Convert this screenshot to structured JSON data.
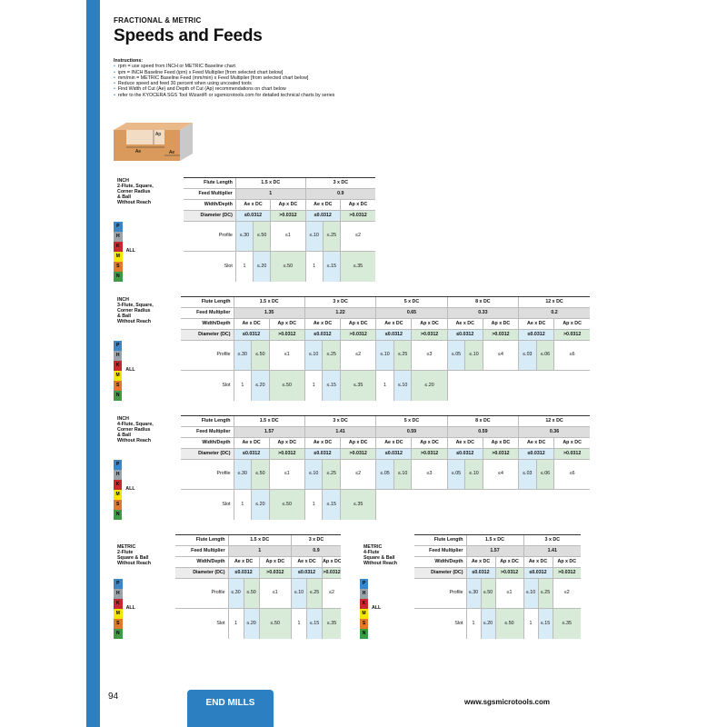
{
  "header": {
    "category": "FRACTIONAL & METRIC",
    "title": "Speeds and Feeds"
  },
  "instructions": {
    "heading": "Instructions:",
    "items": [
      "rpm = use speed from INCH or METRIC Baseline chart",
      "ipm = INCH Baseline Feed (ipm) x Feed Multiplier [from selected chart below]",
      "mm/min = METRIC Baseline Feed (mm/min) x Feed Multiplier [from selected chart below]",
      "Reduce speed and feed 30 percent when using uncoated tools",
      "Find Width of Cut (Ae) and Depth of Cut (Ap) recommendations on chart below",
      "refer to the KYOCERA SGS Tool Wizard® or sgsmicrotools.com for detailed technical charts by series"
    ]
  },
  "diagram": {
    "ap": "Ap",
    "ae": "Ae"
  },
  "labels": {
    "flute": "Flute Length",
    "mult": "Feed Multiplier",
    "wd": "Width/Depth",
    "dia": "Diameter (DC)",
    "ae": "Ae x DC",
    "ap": "Ap x DC",
    "small": "≤0.0312",
    "large": ">0.0312",
    "profile": "Profile",
    "slot": "Slot",
    "all": "ALL"
  },
  "iso": [
    "P",
    "H",
    "K",
    "M",
    "S",
    "N"
  ],
  "isoColors": [
    "#3a86c8",
    "#9aa3aa",
    "#c8282d",
    "#f3e600",
    "#e2792a",
    "#3d9a45"
  ],
  "tables": {
    "t1": {
      "title": "INCH\n2-Flute, Square,\nCorner Radius\n& Ball\nWithout Reach",
      "flutes": [
        "1.5 x DC",
        "3 x DC"
      ],
      "mults": [
        "1",
        "0.9"
      ],
      "profile": [
        "≤.30",
        "≤.50",
        "≤1",
        "≤.10",
        "≤.25",
        "≤2"
      ],
      "slot": [
        "1",
        "≤.20",
        "≤.50",
        "1",
        "≤.15",
        "≤.35"
      ]
    },
    "t2": {
      "title": "INCH\n3-Flute, Square,\nCorner Radius\n& Ball\nWithout Reach",
      "flutes": [
        "1.5 x DC",
        "3 x DC",
        "5 x DC",
        "8 x DC",
        "12 x DC"
      ],
      "mults": [
        "1.35",
        "1.22",
        "0.65",
        "0.33",
        "0.2"
      ],
      "profile": [
        "≤.30",
        "≤.50",
        "≤1",
        "≤.10",
        "≤.25",
        "≤2",
        "≤.10",
        "≤.25",
        "≤3",
        "≤.05",
        "≤.10",
        "≤4",
        "≤.03",
        "≤.06",
        "≤6"
      ],
      "slot": [
        "1",
        "≤.20",
        "≤.50",
        "1",
        "≤.15",
        "≤.35",
        "1",
        "≤.10",
        "≤.20"
      ]
    },
    "t3": {
      "title": "INCH\n4-Flute, Square,\nCorner Radius\n& Ball\nWithout Reach",
      "flutes": [
        "1.5 x DC",
        "3 x DC",
        "5 x DC",
        "8 x DC",
        "12 x DC"
      ],
      "mults": [
        "1.57",
        "1.41",
        "0.59",
        "0.59",
        "0.36"
      ],
      "profile": [
        "≤.30",
        "≤.50",
        "≤1",
        "≤.10",
        "≤.25",
        "≤2",
        "≤.05",
        "≤.10",
        "≤3",
        "≤.05",
        "≤.10",
        "≤4",
        "≤.03",
        "≤.06",
        "≤6"
      ],
      "slot": [
        "1",
        "≤.20",
        "≤.50",
        "1",
        "≤.15",
        "≤.35"
      ]
    },
    "t4": {
      "title": "METRIC\n2-Flute\nSquare & Ball\nWithout Reach",
      "flutes": [
        "1.5 x DC",
        "3 x DC"
      ],
      "mults": [
        "1",
        "0.9"
      ],
      "profile": [
        "≤.30",
        "≤.50",
        "≤1",
        "≤.10",
        "≤.25",
        "≤2"
      ],
      "slot": [
        "1",
        "≤.20",
        "≤.50",
        "1",
        "≤.15",
        "≤.35"
      ]
    },
    "t5": {
      "title": "METRIC\n4-Flute\nSquare & Ball\nWithout Reach",
      "flutes": [
        "1.5 x DC",
        "3 x DC"
      ],
      "mults": [
        "1.57",
        "1.41"
      ],
      "profile": [
        "≤.30",
        "≤.50",
        "≤1",
        "≤.10",
        "≤.25",
        "≤2"
      ],
      "slot": [
        "1",
        "≤.20",
        "≤.50",
        "1",
        "≤.15",
        "≤.35"
      ]
    }
  },
  "footer": {
    "page": "94",
    "tab": "END MILLS",
    "site": "www.sgsmicrotools.com"
  }
}
